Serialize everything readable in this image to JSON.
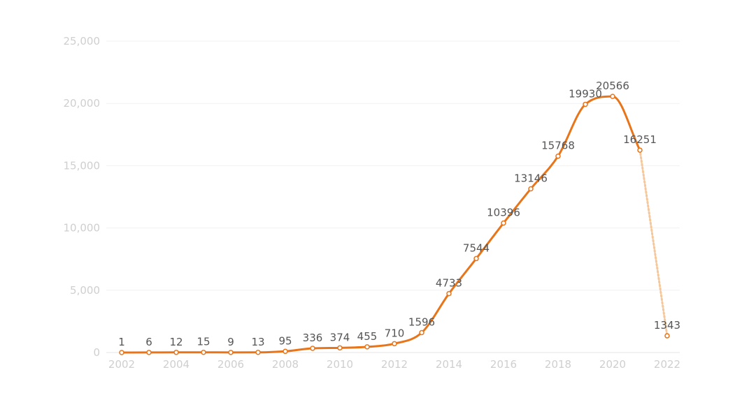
{
  "chart_data": {
    "type": "line",
    "x": [
      2002,
      2003,
      2004,
      2005,
      2006,
      2007,
      2008,
      2009,
      2010,
      2011,
      2012,
      2013,
      2014,
      2015,
      2016,
      2017,
      2018,
      2019,
      2020,
      2021,
      2022
    ],
    "values": [
      1,
      6,
      12,
      15,
      9,
      13,
      95,
      336,
      374,
      455,
      710,
      1596,
      4733,
      7544,
      10396,
      13146,
      15768,
      19930,
      20566,
      16251,
      1343
    ],
    "data_labels": [
      "1",
      "6",
      "12",
      "15",
      "9",
      "13",
      "95",
      "336",
      "374",
      "455",
      "710",
      "1596",
      "4733",
      "7544",
      "10396",
      "13146",
      "15768",
      "19930",
      "20566",
      "16251",
      "1343"
    ],
    "dashed_from_x": 2021,
    "xticks": [
      2002,
      2004,
      2006,
      2008,
      2010,
      2012,
      2014,
      2016,
      2018,
      2020,
      2022
    ],
    "xtick_labels": [
      "2002",
      "2004",
      "2006",
      "2008",
      "2010",
      "2012",
      "2014",
      "2016",
      "2018",
      "2020",
      "2022"
    ],
    "yticks": [
      0,
      5000,
      10000,
      15000,
      20000,
      25000
    ],
    "ytick_labels": [
      "0",
      "5,000",
      "10,000",
      "15,000",
      "20,000",
      "25,000"
    ],
    "xlim": [
      2002,
      2022
    ],
    "ylim": [
      0,
      25000
    ],
    "grid": "horizontal",
    "line_color": "#e8751a",
    "dashed_color": "#f5c79a",
    "title": "",
    "xlabel": "",
    "ylabel": ""
  }
}
